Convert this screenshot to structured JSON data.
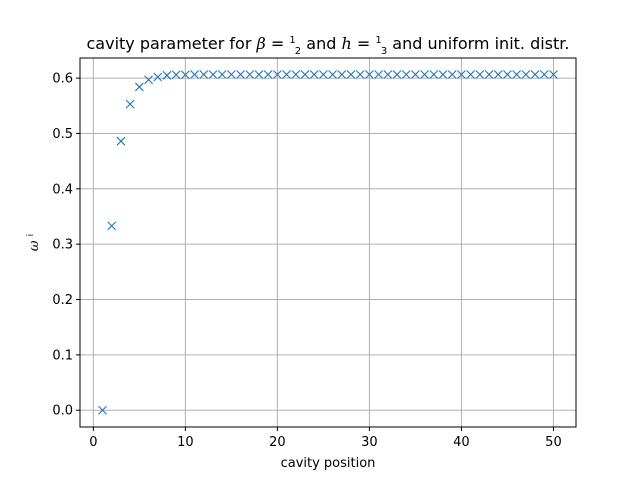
{
  "chart_data": {
    "type": "scatter",
    "title": {
      "prefix": "cavity parameter for ",
      "beta_symbol": "β",
      "beta_num": "1",
      "beta_den": "2",
      "middle": " and ",
      "h_symbol": "h",
      "h_num": "1",
      "h_den": "3",
      "suffix": " and uniform init. distr."
    },
    "xlabel": "cavity position",
    "ylabel": {
      "symbol": "ω",
      "superscript": "i"
    },
    "xlim": [
      -1.45,
      52.45
    ],
    "ylim": [
      -0.0303,
      0.6363
    ],
    "x_ticks": [
      0,
      10,
      20,
      30,
      40,
      50
    ],
    "y_ticks": [
      0.0,
      0.1,
      0.2,
      0.3,
      0.4,
      0.5,
      0.6
    ],
    "x_tick_labels": [
      "0",
      "10",
      "20",
      "30",
      "40",
      "50"
    ],
    "y_tick_labels": [
      "0.0",
      "0.1",
      "0.2",
      "0.3",
      "0.4",
      "0.5",
      "0.6"
    ],
    "grid": true,
    "marker": "x",
    "color": "#1f77b4",
    "x": [
      1,
      2,
      3,
      4,
      5,
      6,
      7,
      8,
      9,
      10,
      11,
      12,
      13,
      14,
      15,
      16,
      17,
      18,
      19,
      20,
      21,
      22,
      23,
      24,
      25,
      26,
      27,
      28,
      29,
      30,
      31,
      32,
      33,
      34,
      35,
      36,
      37,
      38,
      39,
      40,
      41,
      42,
      43,
      44,
      45,
      46,
      47,
      48,
      49,
      50
    ],
    "y": [
      0.0,
      0.333,
      0.486,
      0.553,
      0.584,
      0.597,
      0.602,
      0.605,
      0.606,
      0.606,
      0.6065,
      0.6065,
      0.6065,
      0.6065,
      0.6065,
      0.6065,
      0.6065,
      0.6065,
      0.6065,
      0.6065,
      0.6065,
      0.6065,
      0.6065,
      0.6065,
      0.6065,
      0.6065,
      0.6065,
      0.6065,
      0.6065,
      0.6065,
      0.6065,
      0.6065,
      0.6065,
      0.6065,
      0.6065,
      0.6065,
      0.6065,
      0.6065,
      0.6065,
      0.6065,
      0.6065,
      0.6065,
      0.6065,
      0.6065,
      0.6065,
      0.6065,
      0.6065,
      0.6065,
      0.6065,
      0.6065
    ]
  }
}
